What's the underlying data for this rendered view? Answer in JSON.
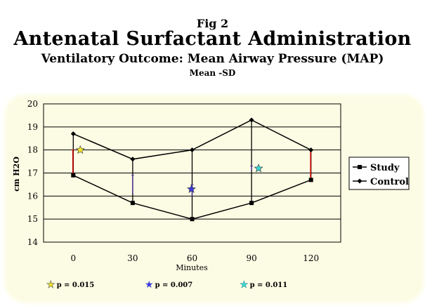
{
  "header": {
    "fig_label": "Fig 2",
    "title": "Antenatal Surfactant Administration",
    "subtitle": "Ventilatory Outcome: Mean Airway Pressure (MAP)",
    "stat_note": "Mean -SD"
  },
  "colors": {
    "panel": "#fcfce4",
    "line": "#000000",
    "errorbar_red": "#cc0000",
    "errorbar_purple": "#5a3a9a",
    "star_yellow": "#f7e829",
    "star_blue": "#3a3adb",
    "star_cyan": "#3fd6d6"
  },
  "chart_data": {
    "type": "line",
    "title": "",
    "xlabel": "Minutes",
    "ylabel": "cm H2O",
    "categories": [
      "0",
      "30",
      "60",
      "90",
      "120"
    ],
    "ylim": [
      14,
      20
    ],
    "yticks": [
      14,
      15,
      16,
      17,
      18,
      19,
      20
    ],
    "grid": true,
    "legend_position": "right",
    "series": [
      {
        "name": "Study",
        "marker": "square",
        "values": [
          16.9,
          15.7,
          15.0,
          15.7,
          16.7
        ]
      },
      {
        "name": "Control",
        "marker": "diamond",
        "values": [
          18.7,
          17.6,
          18.0,
          19.3,
          18.0
        ]
      }
    ],
    "error_bars": [
      {
        "x": "0",
        "low": 16.9,
        "high": 18.0,
        "color": "red"
      },
      {
        "x": "30",
        "low": 16.1,
        "high": 16.9,
        "color": "purple"
      },
      {
        "x": "60",
        "low": 16.0,
        "high": 16.5,
        "color": "purple"
      },
      {
        "x": "90",
        "low": 17.1,
        "high": 17.3,
        "color": "purple"
      },
      {
        "x": "120",
        "low": 16.7,
        "high": 18.0,
        "color": "red"
      }
    ],
    "significance_markers": [
      {
        "x": "0",
        "y": 18.0,
        "color": "yellow",
        "p": "p = 0.015"
      },
      {
        "x": "60",
        "y": 16.3,
        "color": "blue",
        "p": "p = 0.007"
      },
      {
        "x": "90",
        "y": 17.2,
        "color": "cyan",
        "p": "p = 0.011"
      }
    ]
  },
  "annotations": [
    {
      "symbol": "★",
      "color": "yellow",
      "text": "p = 0.015"
    },
    {
      "symbol": "★",
      "color": "blue",
      "text": "p = 0.007"
    },
    {
      "symbol": "★",
      "color": "cyan",
      "text": "p = 0.011"
    }
  ]
}
